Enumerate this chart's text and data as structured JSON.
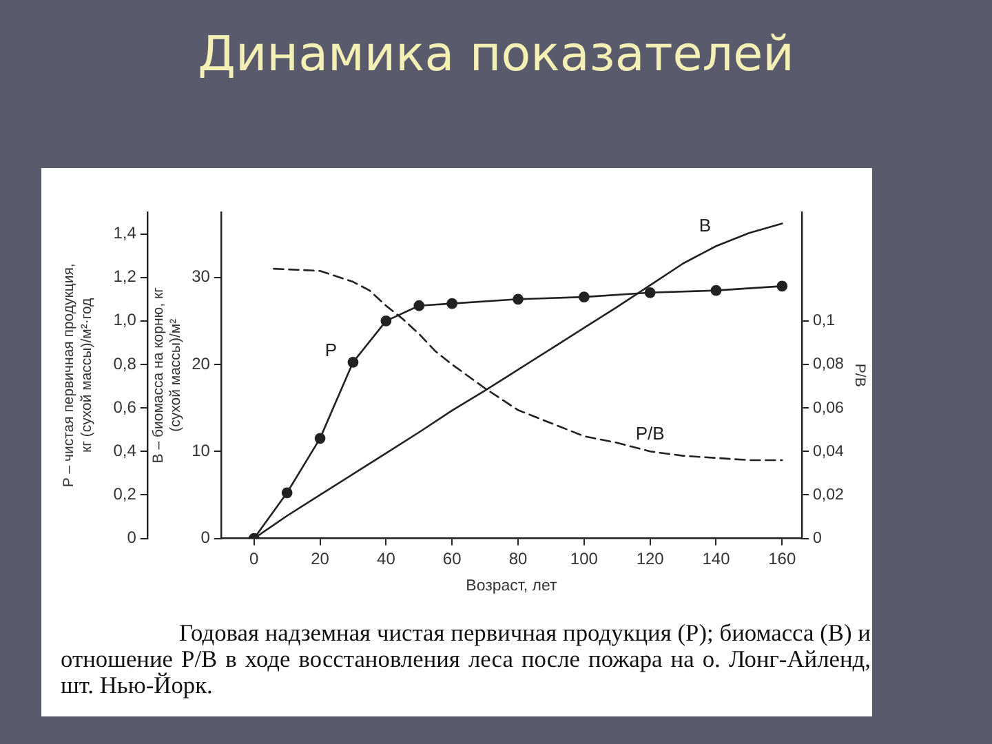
{
  "chart_data": {
    "type": "line",
    "title": "Динамика показателей",
    "xlabel": "Возраст, лет",
    "ylabel": "Р – чистая первичная продукция,\nкг (сухой массы)/м²·год",
    "y2label": "В – биомасса на корню, кг\n(сухой массы)/м²",
    "y3label": "Р/В",
    "annotations": [
      "Годовая надземная чистая первичная продукция (Р); биомасса (В) и отношение Р/В в ходе восстановления леса после пожара на о. Лонг-Айленд, шт. Нью-Йорк."
    ],
    "xlim": [
      -10,
      166
    ],
    "xticks": [
      0,
      20,
      40,
      60,
      80,
      100,
      120,
      140,
      160
    ],
    "ylim": [
      0,
      1.5
    ],
    "yticks": [
      0,
      {
        "value": 0.2,
        "label": "0,2"
      },
      {
        "value": 0.4,
        "label": "0,4"
      },
      {
        "value": 0.6,
        "label": "0,6"
      },
      {
        "value": 0.8,
        "label": "0,8"
      },
      {
        "value": 1.0,
        "label": "1,0"
      },
      {
        "value": 1.2,
        "label": "1,2"
      },
      {
        "value": 1.4,
        "label": "1,4"
      }
    ],
    "y2lim": [
      0,
      37.5
    ],
    "y2ticks": [
      0,
      10,
      20,
      30
    ],
    "y3lim": [
      0,
      0.15
    ],
    "y3ticks": [
      0,
      {
        "value": 0.02,
        "label": "0,02"
      },
      {
        "value": 0.04,
        "label": "0,04"
      },
      {
        "value": 0.06,
        "label": "0,06"
      },
      {
        "value": 0.08,
        "label": "0,08"
      },
      {
        "value": 0.1,
        "label": "0,1"
      }
    ],
    "grid": false,
    "legend": false,
    "series": [
      {
        "name": "Р",
        "color": "#222222",
        "marker": "circle",
        "line_style": "solid",
        "x": [
          0,
          10,
          20,
          30,
          40,
          50,
          60,
          80,
          100,
          120,
          140,
          160
        ],
        "values": [
          0,
          0.21,
          0.46,
          0.81,
          1.0,
          1.07,
          1.08,
          1.1,
          1.11,
          1.13,
          1.14,
          1.16
        ]
      },
      {
        "name": "В",
        "color": "#222222",
        "axis": "y2",
        "marker": "none",
        "line_style": "solid",
        "x": [
          0,
          10,
          20,
          30,
          40,
          50,
          60,
          70,
          80,
          90,
          100,
          110,
          120,
          130,
          140,
          150,
          160
        ],
        "values": [
          0,
          2.6,
          5.0,
          7.4,
          9.8,
          12.2,
          14.7,
          17.0,
          19.4,
          21.8,
          24.2,
          26.6,
          29.1,
          31.6,
          33.6,
          35.1,
          36.2
        ]
      },
      {
        "name": "Р/В",
        "color": "#222222",
        "axis": "y3",
        "marker": "none",
        "line_style": "dashed",
        "x": [
          6,
          20,
          30,
          35,
          40,
          45,
          50,
          55,
          60,
          70,
          80,
          90,
          100,
          110,
          120,
          130,
          140,
          150,
          160
        ],
        "values": [
          0.124,
          0.123,
          0.118,
          0.114,
          0.107,
          0.101,
          0.094,
          0.086,
          0.08,
          0.069,
          0.059,
          0.053,
          0.047,
          0.044,
          0.04,
          0.038,
          0.037,
          0.036,
          0.036
        ]
      }
    ]
  }
}
